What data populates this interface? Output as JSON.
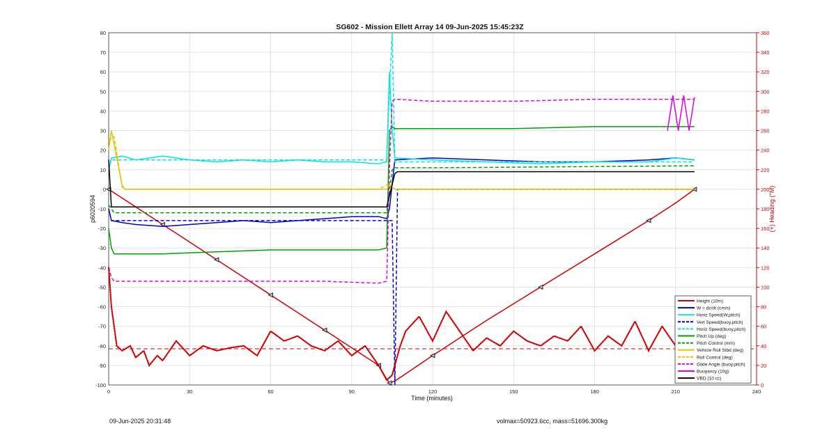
{
  "footer": {
    "timestamp": "09-Jun-2025 20:31:48",
    "summary": "volmax=50923.6cc, mass=51696.300kg"
  },
  "chart_data": {
    "type": "line",
    "title": "SG602 - Mission Ellett Array 14 09-Jun-2025 15:45:23Z",
    "xlabel": "Time (minutes)",
    "ylabel": "p6020594",
    "y2label": "(+) Heading (°M)",
    "xlim": [
      0,
      240
    ],
    "ylim": [
      -100,
      80
    ],
    "y2lim": [
      0,
      360
    ],
    "xticks": [
      0,
      30,
      60,
      90,
      120,
      150,
      180,
      210,
      240
    ],
    "yticks": [
      -100,
      -90,
      -80,
      -70,
      -60,
      -50,
      -40,
      -30,
      -20,
      -10,
      0,
      10,
      20,
      30,
      40,
      50,
      60,
      70,
      80
    ],
    "y2ticks": [
      0,
      20,
      40,
      60,
      80,
      100,
      120,
      140,
      160,
      180,
      200,
      220,
      240,
      260,
      280,
      300,
      320,
      340,
      360
    ],
    "grid": true,
    "legend_position": "bottom-right",
    "legend": [
      {
        "label": "Height (10m)",
        "color": "#d00000",
        "style": "solid"
      },
      {
        "label": "W = dz/dt (cm/s)",
        "color": "#0000cc",
        "style": "solid"
      },
      {
        "label": "Horiz Speed(W,pitch)",
        "color": "#00e5e5",
        "style": "solid"
      },
      {
        "label": "Vert Speed(buoy,pitch)",
        "color": "#0000cc",
        "style": "dashed"
      },
      {
        "label": "Horiz Speed(buoy,pitch)",
        "color": "#00e5e5",
        "style": "dashed"
      },
      {
        "label": "Pitch Up (deg)",
        "color": "#00a000",
        "style": "solid"
      },
      {
        "label": "Pitch Control (mm)",
        "color": "#00a000",
        "style": "dashed"
      },
      {
        "label": "Vehicle Roll Stbd (deg)",
        "color": "#e6c200",
        "style": "solid"
      },
      {
        "label": "Roll Control (deg)",
        "color": "#e6c200",
        "style": "dashed"
      },
      {
        "label": "Glide Angle (buoy,pitch)",
        "color": "#e000e0",
        "style": "dashed"
      },
      {
        "label": "Buoyancy (10g)",
        "color": "#e000e0",
        "style": "solid"
      },
      {
        "label": "VBD (10 cc)",
        "color": "#000000",
        "style": "solid"
      }
    ],
    "series": [
      {
        "name": "Height (10m)",
        "axis": "left",
        "x": [
          0,
          10,
          20,
          30,
          40,
          50,
          60,
          70,
          80,
          90,
          100,
          103,
          104,
          106,
          120,
          140,
          160,
          180,
          200,
          210,
          217
        ],
        "y": [
          0,
          -9,
          -18,
          -27,
          -36,
          -45,
          -54,
          -63,
          -72,
          -81,
          -90,
          -97,
          -99,
          -98,
          -85,
          -67,
          -50,
          -33,
          -16,
          -7,
          0
        ]
      },
      {
        "name": "W = dz/dt (cm/s)",
        "axis": "left",
        "x": [
          0,
          1,
          5,
          10,
          20,
          30,
          40,
          50,
          60,
          70,
          80,
          90,
          100,
          103,
          104,
          106,
          120,
          140,
          160,
          180,
          200,
          210,
          217
        ],
        "y": [
          -10,
          -16,
          -17,
          -18,
          -19,
          -18,
          -17,
          -16,
          -17,
          -16,
          -15,
          -14,
          -14,
          -15,
          -10,
          15,
          16,
          15,
          14,
          14,
          15,
          16,
          15
        ]
      },
      {
        "name": "Horiz Speed(W,pitch)",
        "axis": "left",
        "x": [
          0,
          1,
          5,
          10,
          20,
          30,
          40,
          50,
          60,
          70,
          80,
          90,
          100,
          103,
          104,
          105,
          106,
          120,
          140,
          160,
          180,
          200,
          210,
          217
        ],
        "y": [
          10,
          16,
          17,
          15,
          17,
          15,
          14,
          15,
          14,
          15,
          14,
          14,
          13,
          14,
          60,
          30,
          16,
          15,
          14,
          13,
          14,
          14,
          16,
          15
        ]
      },
      {
        "name": "Vert Speed(buoy,pitch)",
        "axis": "left",
        "x": [
          0,
          1,
          100,
          105,
          106,
          107,
          217
        ],
        "y": [
          -10,
          -16,
          -16,
          -16,
          -100,
          0,
          0
        ]
      },
      {
        "name": "Horiz Speed(buoy,pitch)",
        "axis": "left",
        "x": [
          0,
          1,
          103,
          104,
          105,
          106,
          217
        ],
        "y": [
          10,
          15,
          15,
          50,
          80,
          14,
          14
        ]
      },
      {
        "name": "Pitch Up (deg)",
        "axis": "left",
        "x": [
          0,
          1,
          2,
          20,
          40,
          60,
          80,
          100,
          103,
          104,
          105,
          106,
          120,
          150,
          180,
          200,
          210,
          217
        ],
        "y": [
          -20,
          -30,
          -33,
          -33,
          -32,
          -31,
          -31,
          -31,
          -30,
          30,
          32,
          31,
          31,
          31,
          32,
          32,
          32,
          32
        ]
      },
      {
        "name": "Pitch Control (mm)",
        "axis": "left",
        "x": [
          0,
          2,
          100,
          103,
          105,
          106,
          120,
          217
        ],
        "y": [
          -8,
          -12,
          -12,
          -12,
          10,
          11,
          11,
          12
        ]
      },
      {
        "name": "Vehicle Roll Stbd (deg)",
        "axis": "left",
        "x": [
          0,
          1,
          5,
          6,
          20,
          40,
          60,
          80,
          100,
          103,
          104,
          106,
          120,
          140,
          160,
          180,
          200,
          217
        ],
        "y": [
          20,
          30,
          2,
          0,
          0,
          0,
          0,
          0,
          0,
          0,
          2,
          0,
          0,
          0,
          0,
          0,
          0,
          0
        ]
      },
      {
        "name": "Roll Control (deg)",
        "axis": "left",
        "x": [
          0,
          2,
          5,
          6,
          100,
          104,
          106,
          217
        ],
        "y": [
          25,
          27,
          1,
          0,
          0,
          3,
          0,
          0
        ]
      },
      {
        "name": "Glide Angle (buoy,pitch)",
        "axis": "left",
        "x": [
          0,
          1,
          2,
          20,
          40,
          60,
          80,
          100,
          103,
          104,
          105,
          106,
          120,
          150,
          180,
          200,
          210,
          217
        ],
        "y": [
          -40,
          -45,
          -47,
          -47,
          -47,
          -47,
          -47,
          -48,
          -47,
          10,
          45,
          46,
          45,
          45,
          46,
          46,
          46,
          46
        ]
      },
      {
        "name": "Buoyancy (10g)",
        "axis": "left",
        "x": [
          207,
          209,
          211,
          213,
          215,
          217
        ],
        "y": [
          30,
          48,
          30,
          48,
          30,
          47
        ]
      },
      {
        "name": "VBD (10 cc)",
        "axis": "left",
        "x": [
          0,
          1,
          2,
          100,
          103,
          106,
          107,
          217
        ],
        "y": [
          15,
          -9,
          -9,
          -9,
          -9,
          8,
          9,
          9
        ]
      },
      {
        "name": "Heading",
        "axis": "right",
        "x": [
          0,
          1,
          2,
          3,
          5,
          8,
          10,
          13,
          15,
          18,
          20,
          25,
          30,
          35,
          40,
          45,
          50,
          55,
          60,
          65,
          70,
          75,
          80,
          85,
          90,
          95,
          100,
          103,
          105,
          108,
          110,
          115,
          120,
          125,
          130,
          135,
          140,
          145,
          150,
          155,
          160,
          165,
          170,
          175,
          180,
          185,
          190,
          195,
          200,
          205,
          210,
          213,
          217
        ],
        "y": [
          120,
          80,
          60,
          40,
          35,
          40,
          28,
          35,
          20,
          30,
          25,
          45,
          30,
          40,
          35,
          38,
          40,
          30,
          55,
          45,
          50,
          40,
          35,
          45,
          30,
          40,
          20,
          5,
          10,
          40,
          55,
          70,
          45,
          75,
          55,
          35,
          48,
          40,
          55,
          45,
          40,
          50,
          45,
          60,
          35,
          50,
          40,
          65,
          35,
          60,
          40,
          30,
          45
        ]
      }
    ],
    "reference_line": {
      "axis": "right",
      "y": 37,
      "color": "#d00000",
      "style": "dashed"
    }
  }
}
